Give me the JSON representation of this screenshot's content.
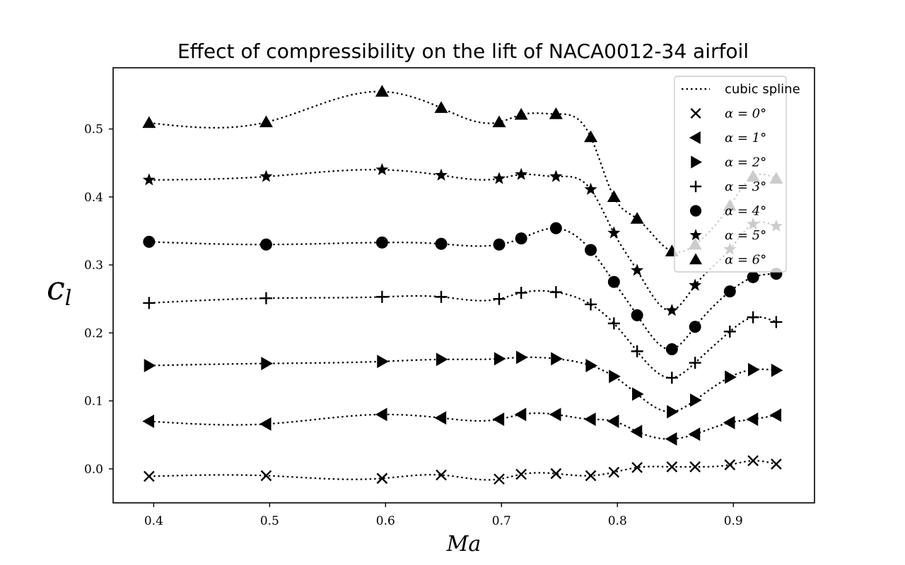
{
  "chart_data": {
    "type": "line",
    "title": "Effect of compressibility on the lift of NACA0012-34 airfoil",
    "xlabel": "Ma",
    "ylabel": "c_l",
    "xlim": [
      0.365,
      0.97
    ],
    "ylim": [
      -0.05,
      0.59
    ],
    "xticks": [
      0.4,
      0.5,
      0.6,
      0.7,
      0.8,
      0.9
    ],
    "xtick_labels": [
      "0.4",
      "0.5",
      "0.6",
      "0.7",
      "0.8",
      "0.9"
    ],
    "yticks": [
      0.0,
      0.1,
      0.2,
      0.3,
      0.4,
      0.5
    ],
    "ytick_labels": [
      "0.0",
      "0.1",
      "0.2",
      "0.3",
      "0.4",
      "0.5"
    ],
    "grid": false,
    "legend_position": "top-right",
    "line_legend": "cubic spline",
    "series": [
      {
        "name": "α = 0°",
        "marker": "x",
        "x": [
          0.396,
          0.497,
          0.597,
          0.648,
          0.698,
          0.717,
          0.747,
          0.777,
          0.797,
          0.817,
          0.847,
          0.867,
          0.897,
          0.917,
          0.937
        ],
        "y": [
          -0.011,
          -0.01,
          -0.014,
          -0.009,
          -0.015,
          -0.008,
          -0.007,
          -0.01,
          -0.005,
          0.002,
          0.003,
          0.003,
          0.006,
          0.012,
          0.007
        ]
      },
      {
        "name": "α = 1°",
        "marker": "triangle-left",
        "x": [
          0.396,
          0.497,
          0.597,
          0.648,
          0.698,
          0.717,
          0.747,
          0.777,
          0.797,
          0.817,
          0.847,
          0.867,
          0.897,
          0.917,
          0.937
        ],
        "y": [
          0.07,
          0.066,
          0.08,
          0.075,
          0.073,
          0.08,
          0.08,
          0.073,
          0.07,
          0.055,
          0.044,
          0.051,
          0.068,
          0.073,
          0.079
        ]
      },
      {
        "name": "α = 2°",
        "marker": "triangle-right",
        "x": [
          0.396,
          0.497,
          0.597,
          0.648,
          0.698,
          0.717,
          0.747,
          0.777,
          0.797,
          0.817,
          0.847,
          0.867,
          0.897,
          0.917,
          0.937
        ],
        "y": [
          0.152,
          0.155,
          0.158,
          0.161,
          0.162,
          0.164,
          0.162,
          0.152,
          0.136,
          0.11,
          0.084,
          0.101,
          0.135,
          0.146,
          0.145
        ]
      },
      {
        "name": "α = 3°",
        "marker": "plus",
        "x": [
          0.396,
          0.497,
          0.597,
          0.648,
          0.698,
          0.717,
          0.747,
          0.777,
          0.797,
          0.817,
          0.847,
          0.867,
          0.897,
          0.917,
          0.937
        ],
        "y": [
          0.244,
          0.251,
          0.253,
          0.253,
          0.25,
          0.259,
          0.26,
          0.242,
          0.214,
          0.173,
          0.134,
          0.156,
          0.202,
          0.223,
          0.216
        ]
      },
      {
        "name": "α = 4°",
        "marker": "circle",
        "x": [
          0.396,
          0.497,
          0.597,
          0.648,
          0.698,
          0.717,
          0.747,
          0.777,
          0.797,
          0.817,
          0.847,
          0.867,
          0.897,
          0.917,
          0.937
        ],
        "y": [
          0.334,
          0.33,
          0.333,
          0.331,
          0.33,
          0.339,
          0.354,
          0.322,
          0.275,
          0.226,
          0.176,
          0.209,
          0.261,
          0.282,
          0.287
        ]
      },
      {
        "name": "α = 5°",
        "marker": "star",
        "x": [
          0.396,
          0.497,
          0.597,
          0.648,
          0.698,
          0.717,
          0.747,
          0.777,
          0.797,
          0.817,
          0.847,
          0.867,
          0.897,
          0.917,
          0.937
        ],
        "y": [
          0.425,
          0.43,
          0.44,
          0.432,
          0.427,
          0.433,
          0.43,
          0.411,
          0.347,
          0.292,
          0.233,
          0.27,
          0.323,
          0.36,
          0.357
        ]
      },
      {
        "name": "α = 6°",
        "marker": "triangle-up",
        "x": [
          0.396,
          0.497,
          0.597,
          0.648,
          0.698,
          0.717,
          0.747,
          0.777,
          0.797,
          0.817,
          0.847,
          0.867,
          0.897,
          0.917,
          0.937
        ],
        "y": [
          0.509,
          0.51,
          0.555,
          0.531,
          0.51,
          0.521,
          0.522,
          0.488,
          0.4,
          0.368,
          0.32,
          0.33,
          0.387,
          0.43,
          0.427
        ]
      }
    ]
  }
}
